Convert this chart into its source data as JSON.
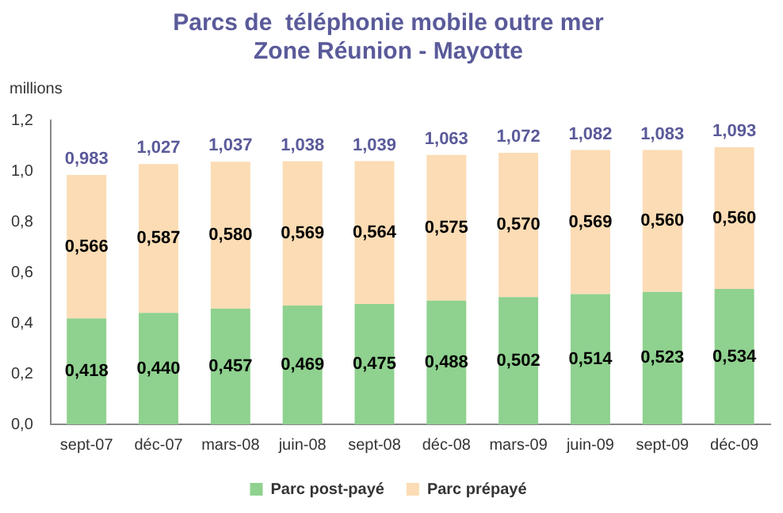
{
  "chart_data": {
    "type": "bar",
    "title": "Parcs de  téléphonie mobile outre mer\nZone Réunion - Mayotte",
    "ylabel": "millions",
    "categories": [
      "sept-07",
      "déc-07",
      "mars-08",
      "juin-08",
      "sept-08",
      "déc-08",
      "mars-09",
      "juin-09",
      "sept-09",
      "déc-09"
    ],
    "stacked": true,
    "series": [
      {
        "name": "Parc post-payé",
        "color": "#8fd18f",
        "values": [
          0.418,
          0.44,
          0.457,
          0.469,
          0.475,
          0.488,
          0.502,
          0.514,
          0.523,
          0.534
        ],
        "value_labels": [
          "0,418",
          "0,440",
          "0,457",
          "0,469",
          "0,475",
          "0,488",
          "0,502",
          "0,514",
          "0,523",
          "0,534"
        ]
      },
      {
        "name": "Parc prépayé",
        "color": "#fcdcb4",
        "values": [
          0.566,
          0.587,
          0.58,
          0.569,
          0.564,
          0.575,
          0.57,
          0.569,
          0.56,
          0.56
        ],
        "value_labels": [
          "0,566",
          "0,587",
          "0,580",
          "0,569",
          "0,564",
          "0,575",
          "0,570",
          "0,569",
          "0,560",
          "0,560"
        ]
      }
    ],
    "totals": [
      "0,983",
      "1,027",
      "1,037",
      "1,038",
      "1,039",
      "1,063",
      "1,072",
      "1,082",
      "1,083",
      "1,093"
    ],
    "ylim": [
      0,
      1.2
    ],
    "yticks": [
      {
        "value": 0,
        "label": "0,0"
      },
      {
        "value": 0.2,
        "label": "0,2"
      },
      {
        "value": 0.4,
        "label": "0,4"
      },
      {
        "value": 0.6,
        "label": "0,6"
      },
      {
        "value": 0.8,
        "label": "0,8"
      },
      {
        "value": 1.0,
        "label": "1,0"
      },
      {
        "value": 1.2,
        "label": "1,2"
      }
    ],
    "grid": false,
    "legend": "bottom"
  }
}
